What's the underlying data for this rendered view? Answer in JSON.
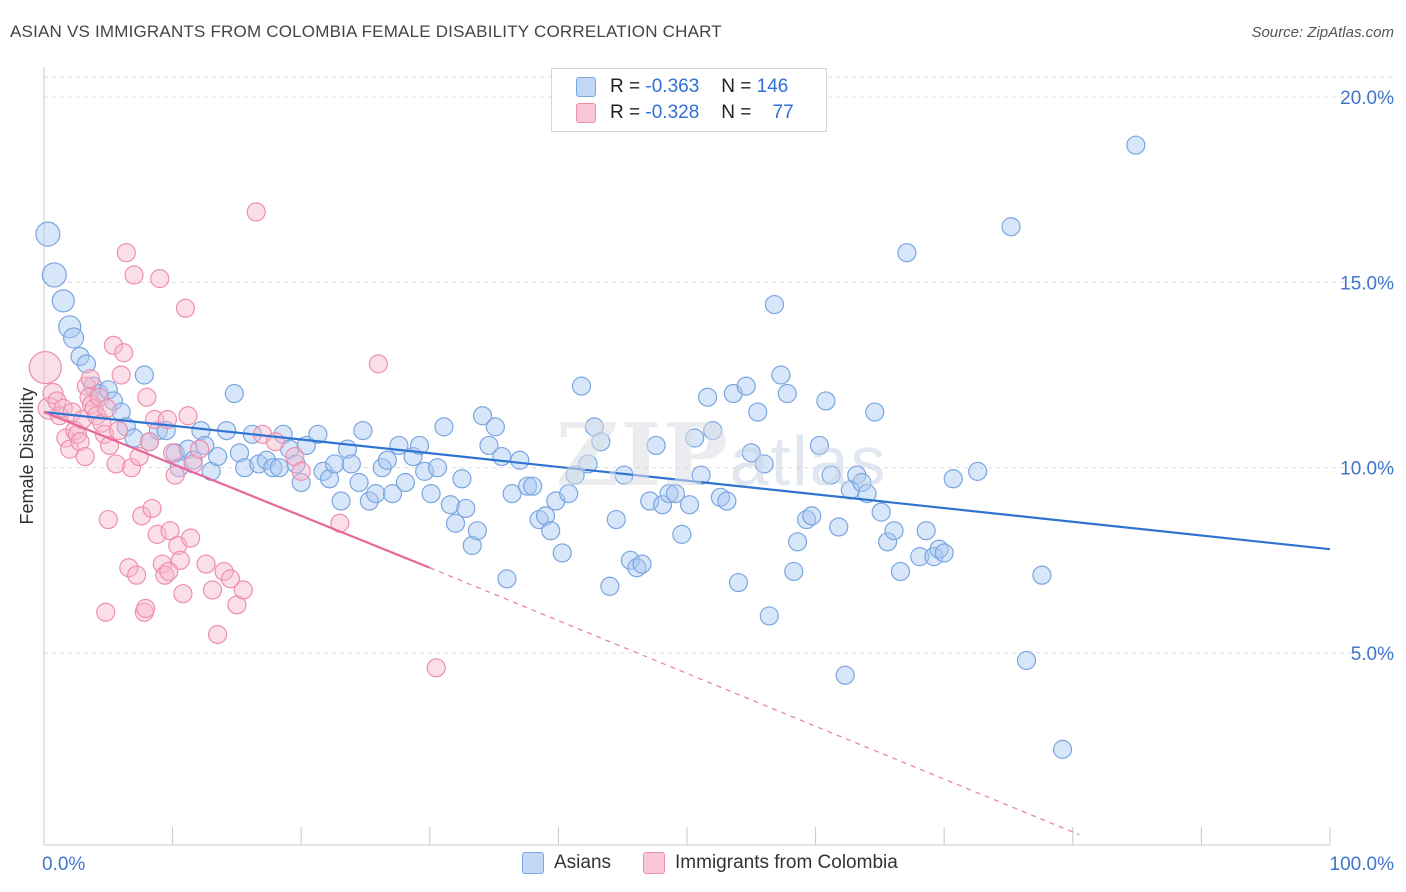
{
  "title": "ASIAN VS IMMIGRANTS FROM COLOMBIA FEMALE DISABILITY CORRELATION CHART",
  "source": "Source: ZipAtlas.com",
  "watermark": {
    "zip": "ZIP",
    "atlas": "atlas"
  },
  "legend_stats": {
    "asians": {
      "r_label": "R =",
      "r_value": "-0.363",
      "n_label": "N =",
      "n_value": "146"
    },
    "colombia": {
      "r_label": "R =",
      "r_value": "-0.328",
      "n_label": "N =",
      "n_value": "77"
    }
  },
  "bottom_legend": {
    "asians": "Asians",
    "colombia": "Immigrants from Colombia"
  },
  "colors": {
    "asians_fill": "#a9c8f2",
    "asians_stroke": "#7aa6e0",
    "asians_line": "#2f73d0",
    "colombia_fill": "#f7b8cb",
    "colombia_stroke": "#ee8fac",
    "colombia_line": "#e8679a",
    "tick_label": "#3f76cc",
    "grid": "#dedede"
  },
  "chart_data": {
    "type": "scatter",
    "title": "ASIAN VS IMMIGRANTS FROM COLOMBIA FEMALE DISABILITY CORRELATION CHART",
    "xlabel": "",
    "ylabel": "Female Disability",
    "xlim": [
      0,
      100
    ],
    "ylim": [
      0,
      21
    ],
    "x_tick_labels": [
      "0.0%",
      "100.0%"
    ],
    "y_ticks": [
      5,
      10,
      15,
      20
    ],
    "y_tick_labels": [
      "5.0%",
      "10.0%",
      "15.0%",
      "20.0%"
    ],
    "grid": "horizontal dashed",
    "legend_position": "top-center",
    "series": [
      {
        "name": "Asians",
        "trend": {
          "x": [
            0,
            100
          ],
          "y": [
            11.5,
            7.8
          ],
          "dashed": false
        },
        "points": [
          [
            0.3,
            16.3,
            12
          ],
          [
            0.8,
            15.2,
            12
          ],
          [
            1.5,
            14.5,
            11
          ],
          [
            2.0,
            13.8,
            11
          ],
          [
            2.3,
            13.5,
            10
          ],
          [
            2.8,
            13.0,
            9
          ],
          [
            3.3,
            12.8,
            9
          ],
          [
            3.8,
            12.2,
            9
          ],
          [
            4.3,
            12.0,
            9
          ],
          [
            5.0,
            12.1,
            9
          ],
          [
            5.4,
            11.8,
            9
          ],
          [
            6.0,
            11.5,
            9
          ],
          [
            6.4,
            11.1,
            9
          ],
          [
            7.0,
            10.8,
            9
          ],
          [
            7.8,
            12.5,
            9
          ],
          [
            8.2,
            10.7,
            9
          ],
          [
            8.9,
            11.0,
            9
          ],
          [
            9.5,
            11.0,
            9
          ],
          [
            10.2,
            10.4,
            9
          ],
          [
            10.5,
            10.0,
            9
          ],
          [
            11.2,
            10.5,
            9
          ],
          [
            11.6,
            10.2,
            9
          ],
          [
            12.2,
            11.0,
            9
          ],
          [
            12.5,
            10.6,
            9
          ],
          [
            13.0,
            9.9,
            9
          ],
          [
            13.5,
            10.3,
            9
          ],
          [
            14.2,
            11.0,
            9
          ],
          [
            14.8,
            12.0,
            9
          ],
          [
            15.2,
            10.4,
            9
          ],
          [
            15.6,
            10.0,
            9
          ],
          [
            16.2,
            10.9,
            9
          ],
          [
            16.7,
            10.1,
            9
          ],
          [
            17.3,
            10.2,
            9
          ],
          [
            17.8,
            10.0,
            9
          ],
          [
            18.3,
            10.0,
            9
          ],
          [
            18.6,
            10.9,
            9
          ],
          [
            19.1,
            10.5,
            9
          ],
          [
            19.6,
            10.1,
            9
          ],
          [
            20.0,
            9.6,
            9
          ],
          [
            20.4,
            10.6,
            9
          ],
          [
            21.3,
            10.9,
            9
          ],
          [
            21.7,
            9.9,
            9
          ],
          [
            22.2,
            9.7,
            9
          ],
          [
            22.6,
            10.1,
            9
          ],
          [
            23.1,
            9.1,
            9
          ],
          [
            23.6,
            10.5,
            9
          ],
          [
            23.9,
            10.1,
            9
          ],
          [
            24.5,
            9.6,
            9
          ],
          [
            24.8,
            11.0,
            9
          ],
          [
            25.3,
            9.1,
            9
          ],
          [
            25.8,
            9.3,
            9
          ],
          [
            26.3,
            10.0,
            9
          ],
          [
            26.7,
            10.2,
            9
          ],
          [
            27.1,
            9.3,
            9
          ],
          [
            27.6,
            10.6,
            9
          ],
          [
            28.1,
            9.6,
            9
          ],
          [
            28.7,
            10.3,
            9
          ],
          [
            29.2,
            10.6,
            9
          ],
          [
            29.6,
            9.9,
            9
          ],
          [
            30.1,
            9.3,
            9
          ],
          [
            30.6,
            10.0,
            9
          ],
          [
            31.1,
            11.1,
            9
          ],
          [
            31.6,
            9.0,
            9
          ],
          [
            32.0,
            8.5,
            9
          ],
          [
            32.5,
            9.7,
            9
          ],
          [
            32.8,
            8.9,
            9
          ],
          [
            33.3,
            7.9,
            9
          ],
          [
            33.7,
            8.3,
            9
          ],
          [
            34.1,
            11.4,
            9
          ],
          [
            34.6,
            10.6,
            9
          ],
          [
            35.1,
            11.1,
            9
          ],
          [
            35.6,
            10.3,
            9
          ],
          [
            36.0,
            7.0,
            9
          ],
          [
            36.4,
            9.3,
            9
          ],
          [
            37.0,
            10.2,
            9
          ],
          [
            37.6,
            9.5,
            9
          ],
          [
            38.0,
            9.5,
            9
          ],
          [
            38.5,
            8.6,
            9
          ],
          [
            39.0,
            8.7,
            9
          ],
          [
            39.4,
            8.3,
            9
          ],
          [
            39.8,
            9.1,
            9
          ],
          [
            40.3,
            7.7,
            9
          ],
          [
            40.8,
            9.3,
            9
          ],
          [
            41.3,
            9.8,
            9
          ],
          [
            41.8,
            12.2,
            9
          ],
          [
            42.3,
            10.1,
            9
          ],
          [
            42.8,
            11.1,
            9
          ],
          [
            43.3,
            10.7,
            9
          ],
          [
            44.0,
            6.8,
            9
          ],
          [
            44.5,
            8.6,
            9
          ],
          [
            45.1,
            9.8,
            9
          ],
          [
            45.6,
            7.5,
            9
          ],
          [
            46.1,
            7.3,
            9
          ],
          [
            46.5,
            7.4,
            9
          ],
          [
            47.1,
            9.1,
            9
          ],
          [
            47.6,
            10.6,
            9
          ],
          [
            48.1,
            9.0,
            9
          ],
          [
            48.6,
            9.3,
            9
          ],
          [
            49.1,
            9.3,
            9
          ],
          [
            49.6,
            8.2,
            9
          ],
          [
            50.2,
            9.0,
            9
          ],
          [
            50.6,
            10.8,
            9
          ],
          [
            51.1,
            9.8,
            9
          ],
          [
            51.6,
            11.9,
            9
          ],
          [
            52.0,
            11.0,
            9
          ],
          [
            52.6,
            9.2,
            9
          ],
          [
            53.1,
            9.1,
            9
          ],
          [
            53.6,
            12.0,
            9
          ],
          [
            54.0,
            6.9,
            9
          ],
          [
            54.6,
            12.2,
            9
          ],
          [
            55.0,
            10.4,
            9
          ],
          [
            55.5,
            11.5,
            9
          ],
          [
            56.0,
            10.1,
            9
          ],
          [
            56.4,
            6.0,
            9
          ],
          [
            56.8,
            14.4,
            9
          ],
          [
            57.3,
            12.5,
            9
          ],
          [
            57.8,
            12.0,
            9
          ],
          [
            58.3,
            7.2,
            9
          ],
          [
            58.6,
            8.0,
            9
          ],
          [
            59.3,
            8.6,
            9
          ],
          [
            59.7,
            8.7,
            9
          ],
          [
            60.3,
            10.6,
            9
          ],
          [
            60.8,
            11.8,
            9
          ],
          [
            61.2,
            9.8,
            9
          ],
          [
            61.8,
            8.4,
            9
          ],
          [
            62.3,
            4.4,
            9
          ],
          [
            62.7,
            9.4,
            9
          ],
          [
            63.2,
            9.8,
            9
          ],
          [
            63.6,
            9.6,
            9
          ],
          [
            64.0,
            9.3,
            9
          ],
          [
            64.6,
            11.5,
            9
          ],
          [
            65.1,
            8.8,
            9
          ],
          [
            65.6,
            8.0,
            9
          ],
          [
            66.1,
            8.3,
            9
          ],
          [
            66.6,
            7.2,
            9
          ],
          [
            67.1,
            15.8,
            9
          ],
          [
            68.1,
            7.6,
            9
          ],
          [
            68.6,
            8.3,
            9
          ],
          [
            69.2,
            7.6,
            9
          ],
          [
            69.6,
            7.8,
            9
          ],
          [
            70.0,
            7.7,
            9
          ],
          [
            70.7,
            9.7,
            9
          ],
          [
            72.6,
            9.9,
            9
          ],
          [
            75.2,
            16.5,
            9
          ],
          [
            76.4,
            4.8,
            9
          ],
          [
            77.6,
            7.1,
            9
          ],
          [
            79.2,
            2.4,
            9
          ],
          [
            84.9,
            18.7,
            9
          ]
        ]
      },
      {
        "name": "Immigrants from Colombia",
        "trend": {
          "x": [
            0,
            30
          ],
          "y": [
            11.5,
            7.3
          ],
          "dashed": false,
          "extension": {
            "x": [
              30,
              80.5
            ],
            "y": [
              7.3,
              0.1
            ],
            "dashed": true
          }
        },
        "points": [
          [
            0.1,
            12.7,
            16
          ],
          [
            0.4,
            11.6,
            11
          ],
          [
            0.7,
            12.0,
            10
          ],
          [
            1.0,
            11.8,
            9
          ],
          [
            1.2,
            11.4,
            9
          ],
          [
            1.5,
            11.6,
            9
          ],
          [
            1.7,
            10.8,
            9
          ],
          [
            2.0,
            10.5,
            9
          ],
          [
            2.2,
            11.5,
            9
          ],
          [
            2.4,
            11.0,
            9
          ],
          [
            2.6,
            10.9,
            9
          ],
          [
            2.8,
            10.7,
            9
          ],
          [
            3.0,
            11.3,
            9
          ],
          [
            3.2,
            10.3,
            9
          ],
          [
            3.3,
            12.2,
            9
          ],
          [
            3.5,
            11.9,
            9
          ],
          [
            3.7,
            11.7,
            9
          ],
          [
            3.9,
            11.6,
            9
          ],
          [
            4.1,
            11.4,
            9
          ],
          [
            4.3,
            11.9,
            9
          ],
          [
            4.5,
            11.2,
            9
          ],
          [
            4.7,
            10.9,
            9
          ],
          [
            4.9,
            11.6,
            9
          ],
          [
            5.1,
            10.6,
            9
          ],
          [
            5.4,
            13.3,
            9
          ],
          [
            5.6,
            10.1,
            9
          ],
          [
            5.8,
            11.0,
            9
          ],
          [
            6.0,
            12.5,
            9
          ],
          [
            6.2,
            13.1,
            9
          ],
          [
            6.4,
            15.8,
            9
          ],
          [
            6.6,
            7.3,
            9
          ],
          [
            6.8,
            10.0,
            9
          ],
          [
            7.0,
            15.2,
            9
          ],
          [
            7.2,
            7.1,
            9
          ],
          [
            7.4,
            10.3,
            9
          ],
          [
            7.6,
            8.7,
            9
          ],
          [
            7.8,
            6.1,
            9
          ],
          [
            8.0,
            11.9,
            9
          ],
          [
            8.2,
            10.7,
            9
          ],
          [
            8.4,
            8.9,
            9
          ],
          [
            8.6,
            11.3,
            9
          ],
          [
            8.8,
            8.2,
            9
          ],
          [
            9.0,
            15.1,
            9
          ],
          [
            9.2,
            7.4,
            9
          ],
          [
            9.4,
            7.1,
            9
          ],
          [
            9.6,
            11.3,
            9
          ],
          [
            9.8,
            8.3,
            9
          ],
          [
            10.0,
            10.4,
            9
          ],
          [
            10.2,
            9.8,
            9
          ],
          [
            10.4,
            7.9,
            9
          ],
          [
            10.6,
            7.5,
            9
          ],
          [
            10.8,
            6.6,
            9
          ],
          [
            11.0,
            14.3,
            9
          ],
          [
            11.2,
            11.4,
            9
          ],
          [
            11.4,
            8.1,
            9
          ],
          [
            11.6,
            10.1,
            9
          ],
          [
            12.1,
            10.5,
            9
          ],
          [
            12.6,
            7.4,
            9
          ],
          [
            13.1,
            6.7,
            9
          ],
          [
            13.5,
            5.5,
            9
          ],
          [
            14.0,
            7.2,
            9
          ],
          [
            14.5,
            7.0,
            9
          ],
          [
            15.0,
            6.3,
            9
          ],
          [
            15.5,
            6.7,
            9
          ],
          [
            16.5,
            16.9,
            9
          ],
          [
            17.0,
            10.9,
            9
          ],
          [
            18.0,
            10.7,
            9
          ],
          [
            19.5,
            10.3,
            9
          ],
          [
            20.0,
            9.9,
            9
          ],
          [
            23.0,
            8.5,
            9
          ],
          [
            26.0,
            12.8,
            9
          ],
          [
            30.5,
            4.6,
            9
          ],
          [
            4.8,
            6.1,
            9
          ],
          [
            5.0,
            8.6,
            9
          ],
          [
            7.9,
            6.2,
            9
          ],
          [
            9.7,
            7.2,
            9
          ],
          [
            3.6,
            12.4,
            9
          ]
        ]
      }
    ]
  }
}
